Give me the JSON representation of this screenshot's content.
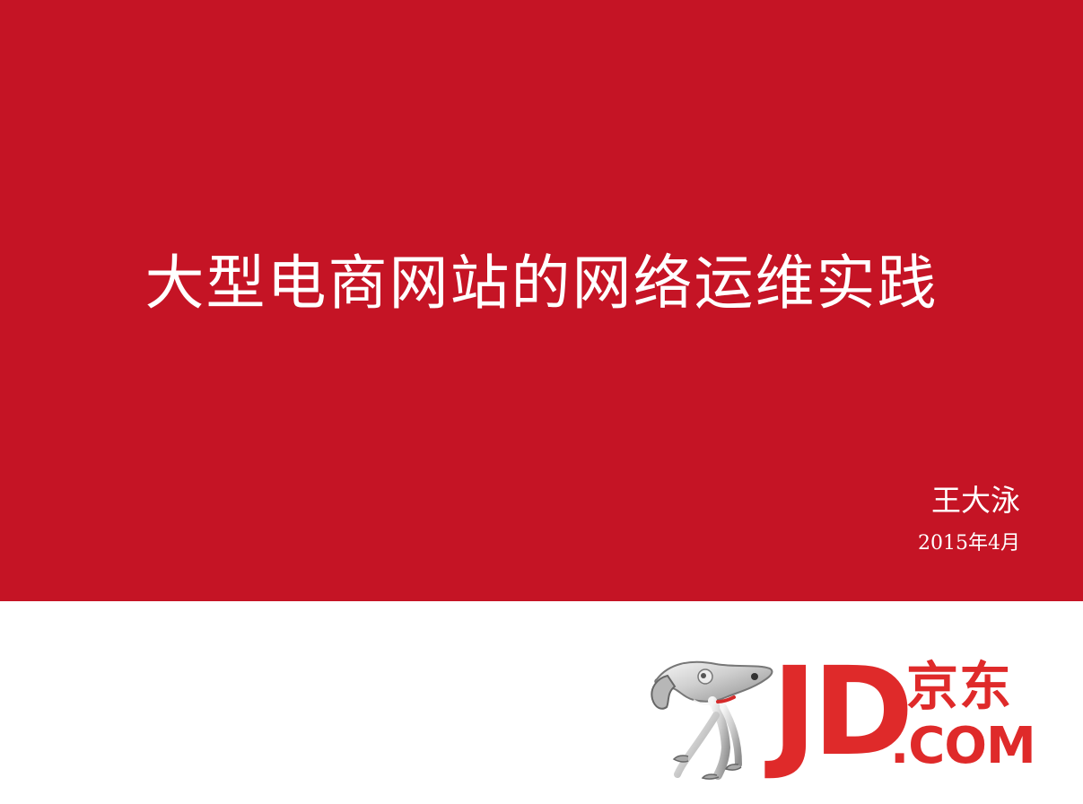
{
  "slide": {
    "title": "大型电商网站的网络运维实践",
    "author": "王大泳",
    "date": "2015年4月"
  },
  "brand": {
    "jd": "JD",
    "cn": "京东",
    "com": ".COM",
    "mascot_icon": "dog-mascot-icon"
  },
  "colors": {
    "panel_red": "#c51425",
    "logo_red": "#df2a2a",
    "white": "#ffffff"
  }
}
